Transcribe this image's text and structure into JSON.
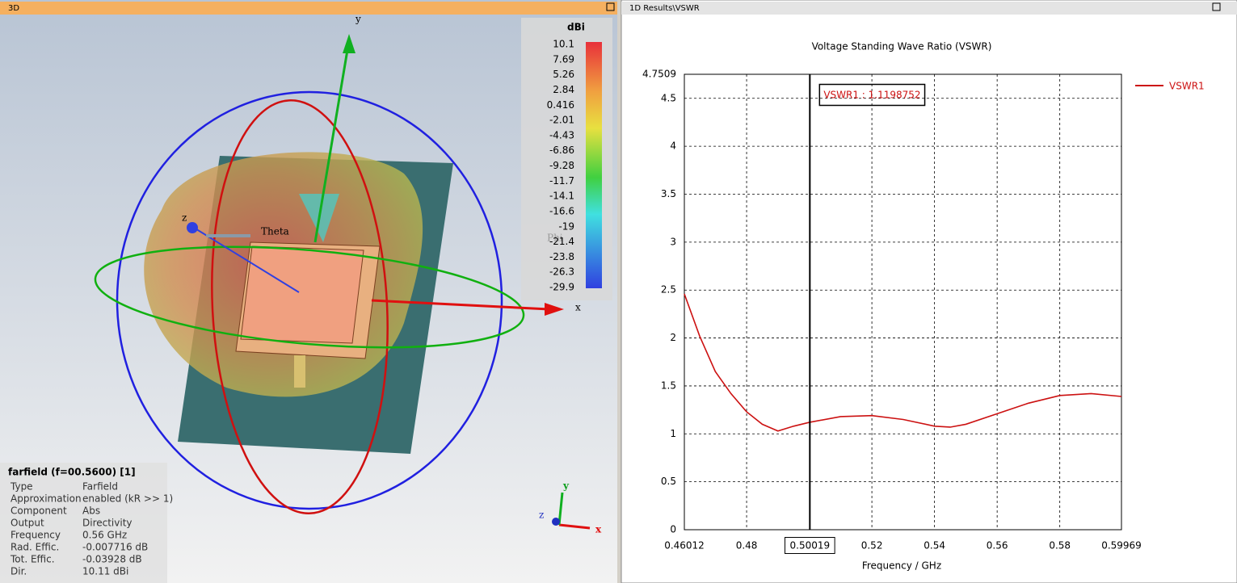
{
  "left_panel": {
    "title": "3D",
    "colorbar": {
      "unit": "dBi",
      "labels": [
        "10.1",
        "7.69",
        "5.26",
        "2.84",
        "0.416",
        "-2.01",
        "-4.43",
        "-6.86",
        "-9.28",
        "-11.7",
        "-14.1",
        "-16.6",
        "-19",
        "-21.4",
        "-23.8",
        "-26.3",
        "-29.9"
      ]
    },
    "axes": {
      "x": "x",
      "y": "y",
      "z": "z",
      "theta": "Theta",
      "phi": "Phi"
    },
    "info": {
      "title": "farfield (f=00.5600) [1]",
      "rows": [
        [
          "Type",
          "Farfield"
        ],
        [
          "Approximation",
          "enabled (kR >> 1)"
        ],
        [
          "Component",
          "Abs"
        ],
        [
          "Output",
          "Directivity"
        ],
        [
          "Frequency",
          "0.56 GHz"
        ],
        [
          "Rad. Effic.",
          "-0.007716 dB"
        ],
        [
          "Tot. Effic.",
          "-0.03928 dB"
        ],
        [
          "Dir.",
          "10.11 dBi"
        ]
      ]
    },
    "mini_axes": {
      "x": "x",
      "y": "y",
      "z": "z"
    }
  },
  "right_panel": {
    "title": "1D Results\\VSWR"
  },
  "chart_data": {
    "type": "line",
    "title": "Voltage Standing Wave Ratio (VSWR)",
    "x_label": "Frequency / GHz",
    "x": [
      0.46012,
      0.465,
      0.47,
      0.475,
      0.48,
      0.485,
      0.49,
      0.495,
      0.5,
      0.51,
      0.52,
      0.53,
      0.54,
      0.545,
      0.55,
      0.56,
      0.57,
      0.58,
      0.59,
      0.59969
    ],
    "series": [
      {
        "name": "VSWR1",
        "color": "#cc1111",
        "values": [
          2.46,
          2.02,
          1.65,
          1.42,
          1.23,
          1.1,
          1.03,
          1.08,
          1.12,
          1.18,
          1.19,
          1.15,
          1.08,
          1.07,
          1.1,
          1.21,
          1.32,
          1.4,
          1.42,
          1.39
        ]
      }
    ],
    "xlim": [
      0.46012,
      0.59969
    ],
    "xticks": [
      0.46012,
      0.48,
      0.52,
      0.54,
      0.56,
      0.58,
      0.59969
    ],
    "ylim": [
      0,
      4.7509
    ],
    "yticks": [
      0,
      0.5,
      1,
      1.5,
      2,
      2.5,
      3,
      3.5,
      4,
      4.5,
      4.7509
    ],
    "grid": true,
    "legend": "right",
    "marker": {
      "x": 0.50019,
      "label": "VSWR1 : 1.1198752"
    }
  }
}
